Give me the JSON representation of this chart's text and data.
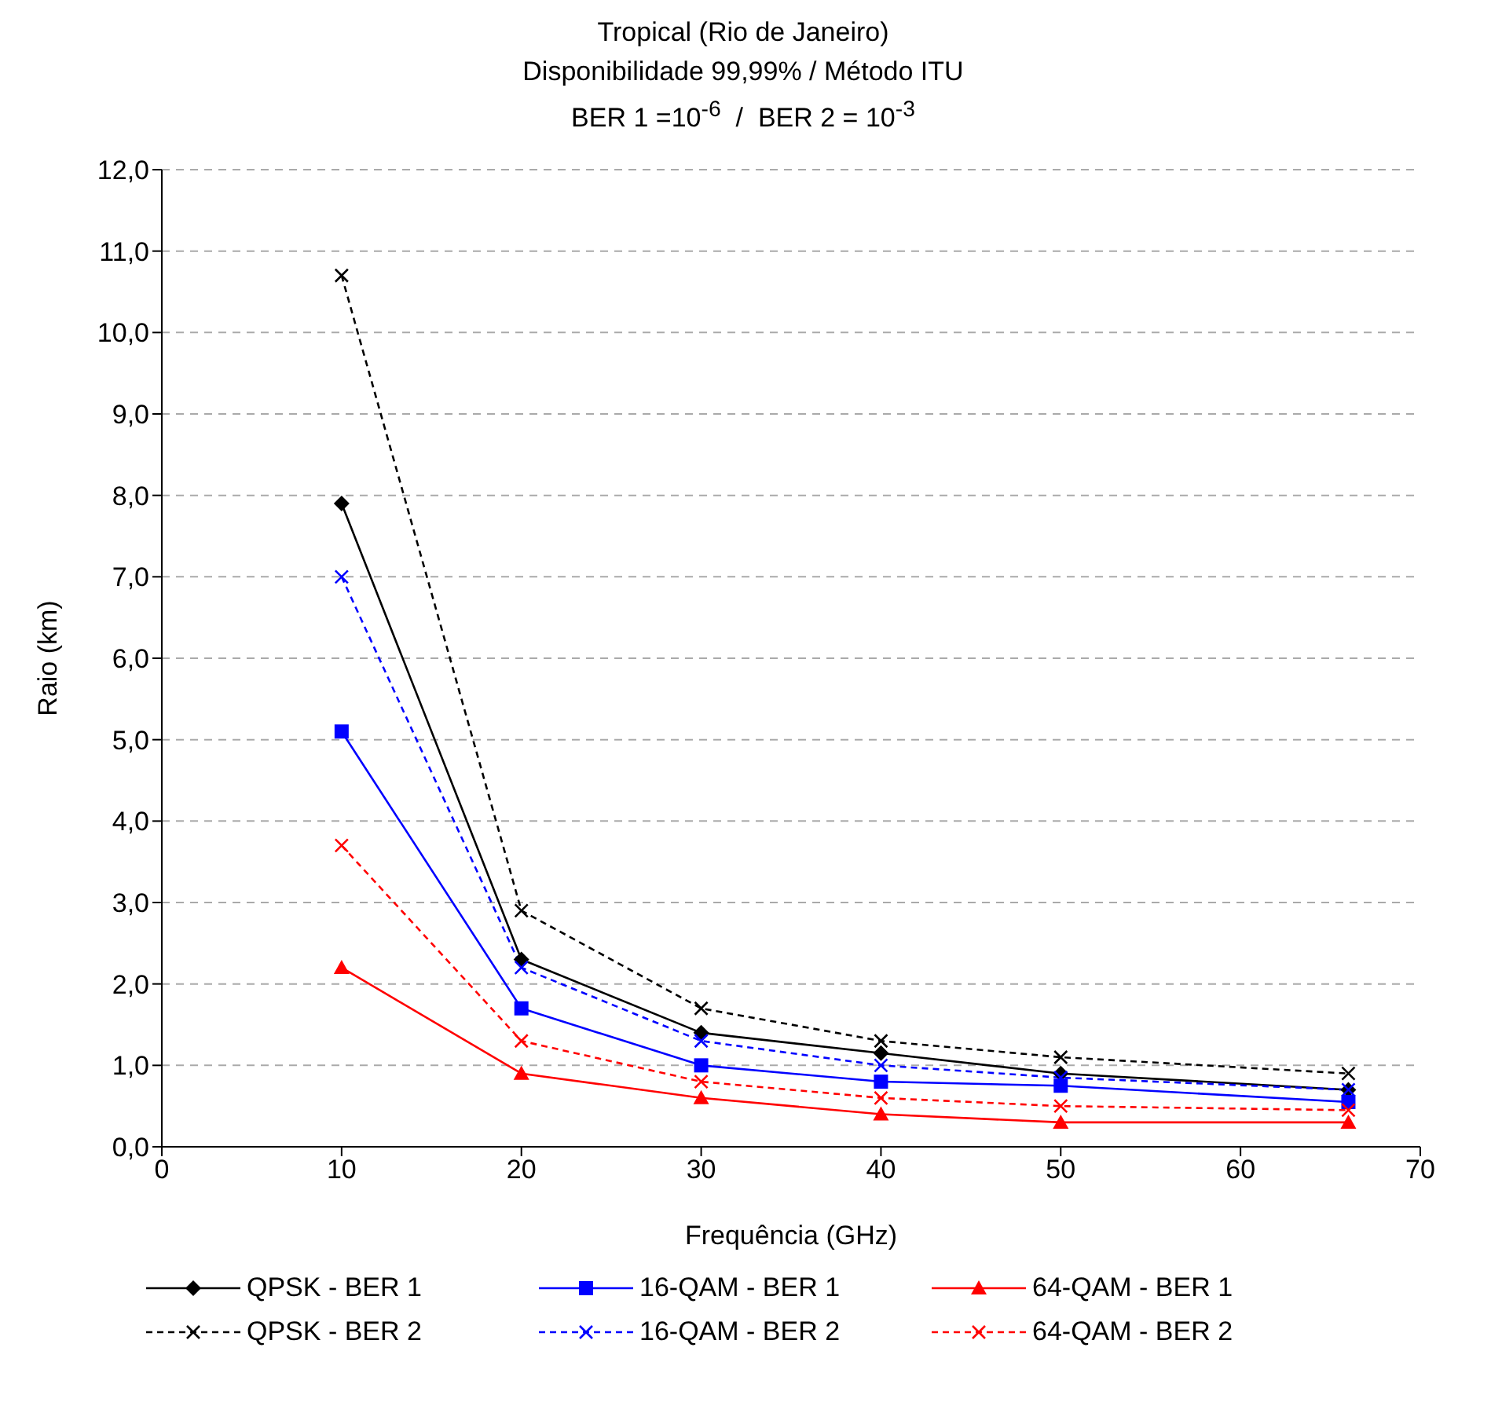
{
  "chart_data": {
    "type": "line",
    "title": "Tropical (Rio de Janeiro)",
    "subtitle": "Disponibilidade 99,99% / Método ITU\nBER 1 =10$^{-6}$  /  BER 2 = 10$^{-3}$",
    "xlabel": "Frequência (GHz)",
    "ylabel": "Raio (km)",
    "x": [
      10,
      20,
      30,
      40,
      50,
      66
    ],
    "series": [
      {
        "name": "QPSK - BER 1",
        "color": "#000000",
        "marker": "diamond",
        "line_style": "solid",
        "values": [
          7.9,
          2.3,
          1.4,
          1.15,
          0.9,
          0.7
        ]
      },
      {
        "name": "16-QAM - BER 1",
        "color": "#0000ff",
        "marker": "square",
        "line_style": "solid",
        "values": [
          5.1,
          1.7,
          1.0,
          0.8,
          0.75,
          0.55
        ]
      },
      {
        "name": "64-QAM - BER 1",
        "color": "#ff0000",
        "marker": "triangle",
        "line_style": "solid",
        "values": [
          2.2,
          0.9,
          0.6,
          0.4,
          0.3,
          0.3
        ]
      },
      {
        "name": "QPSK - BER 2",
        "color": "#000000",
        "marker": "cross",
        "line_style": "dashed",
        "values": [
          10.7,
          2.9,
          1.7,
          1.3,
          1.1,
          0.9
        ]
      },
      {
        "name": "16-QAM - BER 2",
        "color": "#0000ff",
        "marker": "cross",
        "line_style": "dashed",
        "values": [
          7.0,
          2.2,
          1.3,
          1.0,
          0.85,
          0.7
        ]
      },
      {
        "name": "64-QAM - BER 2",
        "color": "#ff0000",
        "marker": "cross",
        "line_style": "dashed",
        "values": [
          3.7,
          1.3,
          0.8,
          0.6,
          0.5,
          0.45
        ]
      }
    ],
    "xlim": [
      0,
      70
    ],
    "xticks": [
      0,
      10,
      20,
      30,
      40,
      50,
      60,
      70
    ],
    "ylim": [
      0,
      12
    ],
    "yticks": [
      {
        "value": 0,
        "label": "0,0"
      },
      {
        "value": 1,
        "label": "1,0"
      },
      {
        "value": 2,
        "label": "2,0"
      },
      {
        "value": 3,
        "label": "3,0"
      },
      {
        "value": 4,
        "label": "4,0"
      },
      {
        "value": 5,
        "label": "5,0"
      },
      {
        "value": 6,
        "label": "6,0"
      },
      {
        "value": 7,
        "label": "7,0"
      },
      {
        "value": 8,
        "label": "8,0"
      },
      {
        "value": 9,
        "label": "9,0"
      },
      {
        "value": 10,
        "label": "10,0"
      },
      {
        "value": 11,
        "label": "11,0"
      },
      {
        "value": 12,
        "label": "12,0"
      }
    ],
    "grid": "y",
    "legend": "bottom"
  }
}
